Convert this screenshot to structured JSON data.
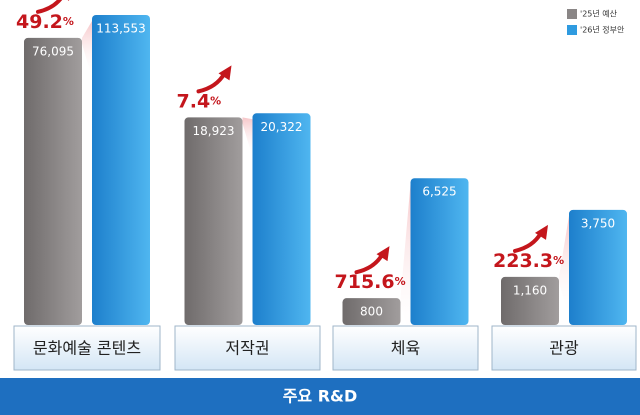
{
  "chart_data": {
    "type": "bar",
    "log_scale": true,
    "ylim": [
      500,
      140000
    ],
    "categories": [
      "문화예술 콘텐츠",
      "저작권",
      "체육",
      "관광"
    ],
    "series": [
      {
        "name": "'25년 예산",
        "color": "#8a8686",
        "values": [
          76095,
          18923,
          800,
          1160
        ],
        "value_labels": [
          "76,095",
          "18,923",
          "800",
          "1,160"
        ]
      },
      {
        "name": "'26년 정부안",
        "color": "#2f9be0",
        "values": [
          113553,
          20322,
          6525,
          3750
        ],
        "value_labels": [
          "113,553",
          "20,322",
          "6,525",
          "3,750"
        ]
      }
    ],
    "growth": {
      "values": [
        49.2,
        7.4,
        715.6,
        223.3
      ],
      "value_labels": [
        "49.2%",
        "7.4%",
        "715.6%",
        "223.3%"
      ],
      "color": "#c4161c"
    },
    "footer": "주요 R&D"
  }
}
